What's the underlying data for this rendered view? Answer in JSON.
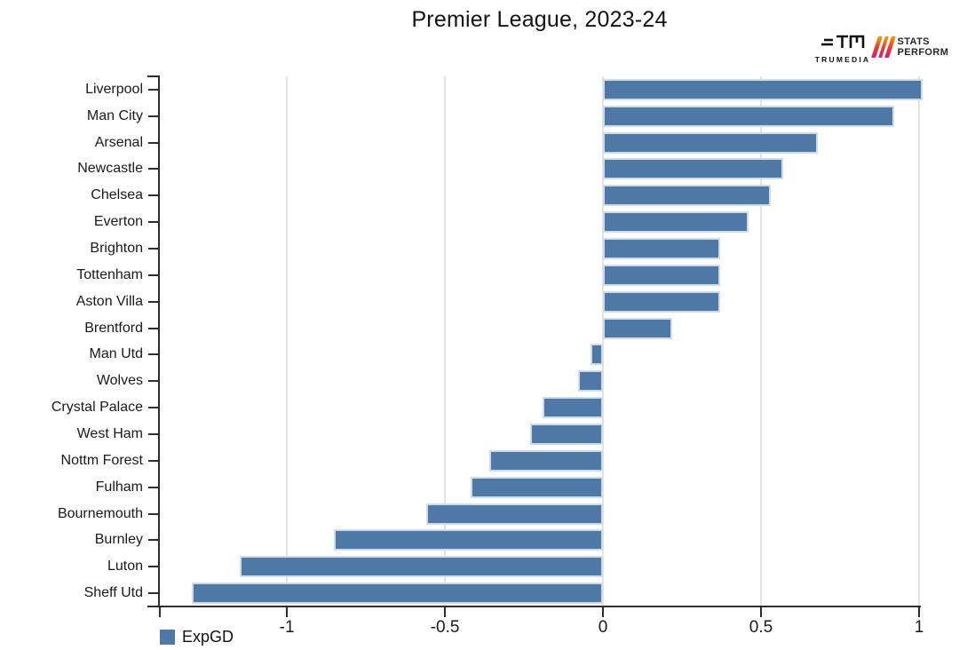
{
  "title": "Premier League, 2023-24",
  "branding": {
    "trumedia_label": "TRUMEDIA",
    "stats_perform_line1": "STATS",
    "stats_perform_line2": "PERFORM"
  },
  "legend": {
    "label": "ExpGD",
    "swatch_color": "#4e79a7"
  },
  "chart_data": {
    "type": "bar",
    "orientation": "horizontal",
    "title": "Premier League, 2023-24",
    "series_name": "ExpGD",
    "categories": [
      "Liverpool",
      "Man City",
      "Arsenal",
      "Newcastle",
      "Chelsea",
      "Everton",
      "Brighton",
      "Tottenham",
      "Aston Villa",
      "Brentford",
      "Man Utd",
      "Wolves",
      "Crystal Palace",
      "West Ham",
      "Nottm Forest",
      "Fulham",
      "Bournemouth",
      "Burnley",
      "Luton",
      "Sheff Utd"
    ],
    "values": [
      1.01,
      0.92,
      0.68,
      0.57,
      0.53,
      0.46,
      0.37,
      0.37,
      0.37,
      0.22,
      -0.04,
      -0.08,
      -0.19,
      -0.23,
      -0.36,
      -0.42,
      -0.56,
      -0.85,
      -1.15,
      -1.3
    ],
    "xlabel": "",
    "ylabel": "",
    "xlim": [
      -1.402,
      1.0
    ],
    "x_ticks": [
      -1,
      -0.5,
      0,
      0.5,
      1
    ],
    "x_tick_labels": [
      "-1",
      "-0.5",
      "0",
      "0.5",
      "1"
    ],
    "grid": true,
    "legend_position": "bottom-left",
    "bar_color": "#4e79a7",
    "bar_border_color": "#cfdbe9",
    "grid_color": "#e3e3e3",
    "axis_color": "#2d2d2d",
    "text_color": "#1a1a1a"
  }
}
